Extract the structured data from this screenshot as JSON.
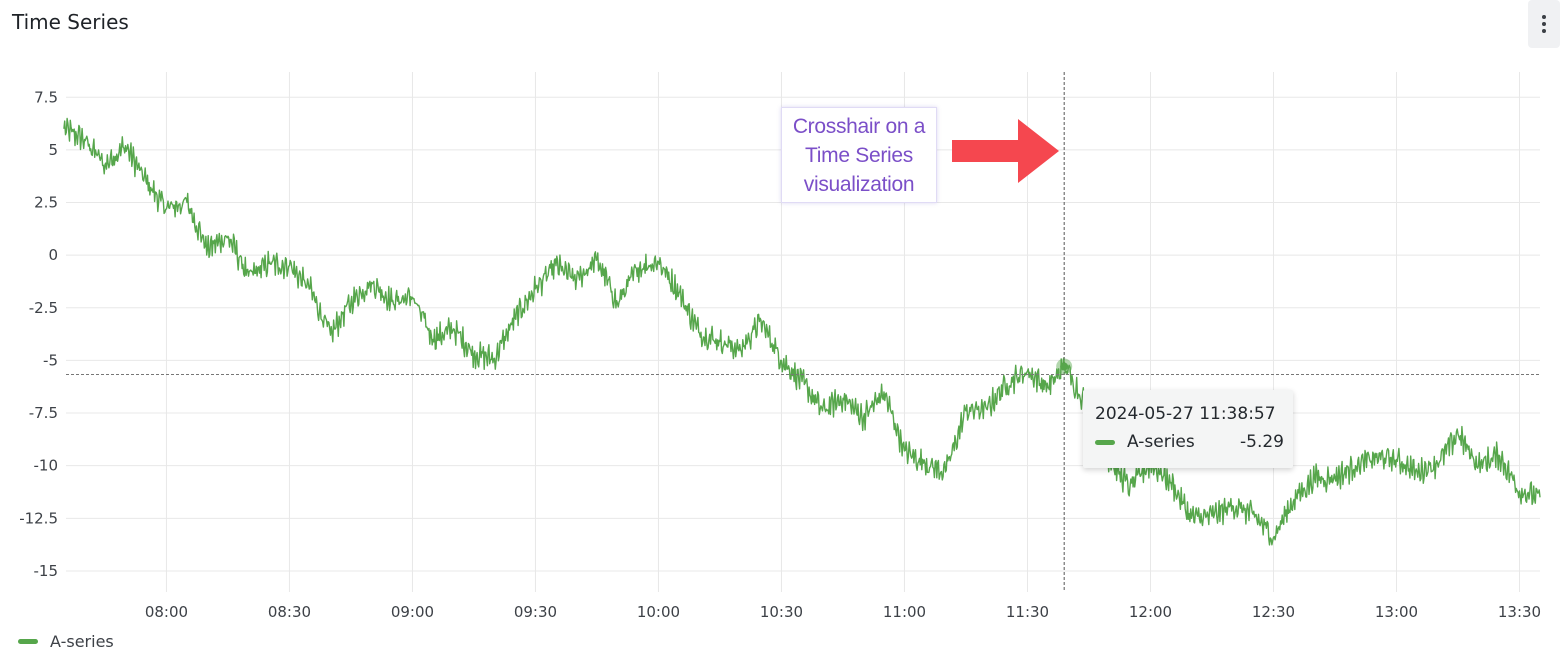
{
  "panel": {
    "title": "Time Series"
  },
  "annotation": {
    "text": "Crosshair on a\nTime Series\nvisualization"
  },
  "tooltip": {
    "time": "2024-05-27 11:38:57",
    "series": "A-series",
    "value": "-5.29"
  },
  "legend": {
    "label": "A-series"
  },
  "colors": {
    "series": "#56a64b",
    "arrow": "#f5474f",
    "annotation_text": "#7b4fc8",
    "grid": "#e8e8e8"
  },
  "chart_data": {
    "type": "line",
    "title": "Time Series",
    "xlabel": "",
    "ylabel": "",
    "ylim": [
      -16,
      8.7
    ],
    "xlim_minutes": [
      455.5,
      815
    ],
    "grid": true,
    "legend_position": "bottom-left",
    "x_ticks": [
      "08:00",
      "08:30",
      "09:00",
      "09:30",
      "10:00",
      "10:30",
      "11:00",
      "11:30",
      "12:00",
      "12:30",
      "13:00",
      "13:30"
    ],
    "y_ticks": [
      7.5,
      5,
      2.5,
      0,
      -2.5,
      -5,
      -7.5,
      -10,
      -12.5,
      -15
    ],
    "y_tick_labels": [
      "7.5",
      "5",
      "2.5",
      "0",
      "-2.5",
      "-5",
      "-7.5",
      "-10",
      "-12.5",
      "-15"
    ],
    "crosshair": {
      "x": "11:38:57",
      "y": -5.29
    },
    "series": [
      {
        "name": "A-series",
        "x": [
          "07:35",
          "07:40",
          "07:45",
          "07:50",
          "07:55",
          "08:00",
          "08:05",
          "08:10",
          "08:15",
          "08:20",
          "08:25",
          "08:30",
          "08:35",
          "08:40",
          "08:45",
          "08:50",
          "08:55",
          "09:00",
          "09:05",
          "09:10",
          "09:15",
          "09:20",
          "09:25",
          "09:30",
          "09:35",
          "09:40",
          "09:45",
          "09:50",
          "09:55",
          "10:00",
          "10:05",
          "10:10",
          "10:15",
          "10:20",
          "10:25",
          "10:30",
          "10:35",
          "10:40",
          "10:45",
          "10:50",
          "10:55",
          "11:00",
          "11:05",
          "11:10",
          "11:15",
          "11:20",
          "11:25",
          "11:30",
          "11:35",
          "11:39",
          "11:45",
          "11:50",
          "11:55",
          "12:00",
          "12:05",
          "12:10",
          "12:15",
          "12:20",
          "12:25",
          "12:30",
          "12:35",
          "12:40",
          "12:45",
          "12:50",
          "12:55",
          "13:00",
          "13:05",
          "13:10",
          "13:15",
          "13:20",
          "13:25",
          "13:30",
          "13:35"
        ],
        "values": [
          6.0,
          5.5,
          4.3,
          5.2,
          3.5,
          2.2,
          2.5,
          0.3,
          0.9,
          -1.0,
          -0.4,
          -0.5,
          -1.6,
          -3.8,
          -2.2,
          -1.3,
          -2.2,
          -2.0,
          -4.0,
          -3.5,
          -4.7,
          -4.9,
          -3.0,
          -1.6,
          -0.5,
          -1.2,
          -0.2,
          -2.3,
          -0.6,
          -0.3,
          -1.8,
          -3.7,
          -4.1,
          -4.5,
          -3.1,
          -5.0,
          -6.0,
          -7.4,
          -6.8,
          -7.7,
          -6.5,
          -9.3,
          -9.9,
          -10.3,
          -7.4,
          -7.3,
          -6.1,
          -5.5,
          -6.3,
          -5.29,
          -7.3,
          -9.8,
          -11.0,
          -9.9,
          -10.8,
          -12.5,
          -12.4,
          -11.9,
          -12.3,
          -13.4,
          -11.6,
          -10.6,
          -10.6,
          -10.0,
          -9.6,
          -9.7,
          -10.3,
          -9.9,
          -8.5,
          -10.0,
          -9.5,
          -11.2,
          -11.5
        ]
      }
    ]
  }
}
